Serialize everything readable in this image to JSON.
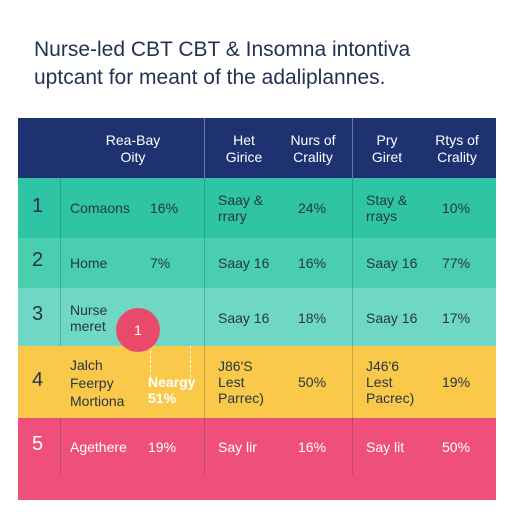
{
  "title": {
    "line1": "Nurse-led CBT CBT & Insomna intontiva",
    "line2": "uptcant for meant of the adaliplannes."
  },
  "colors": {
    "header": "#1e3170",
    "teal_dark": "#2fc4a3",
    "teal_mid": "#49cfb0",
    "teal_light": "#6fd8c4",
    "amber": "#fbc94a",
    "pink": "#ef4f7b",
    "badge": "#e94a6c"
  },
  "header": {
    "col1": "Rea-Bay\nOity",
    "col2a": "Het\nGirice",
    "col2b": "Nurs of\nCrality",
    "col3a": "Pry\nGiret",
    "col3b": "Rtys of\nCrality"
  },
  "rows": [
    {
      "num": "1",
      "label": "Comaons",
      "p1": "16%",
      "c2a": "Saay &\nrrary",
      "c2b": "24%",
      "c3a": "Stay &\nrrays",
      "c3b": "10%"
    },
    {
      "num": "2",
      "label": "Home",
      "p1": "7%",
      "c2a": "Saay 16",
      "c2b": "16%",
      "c3a": "Saay 16",
      "c3b": "77%"
    },
    {
      "num": "3",
      "label": "Nurse\nmeret",
      "p1": "",
      "c2a": "Saay 16",
      "c2b": "18%",
      "c3a": "Saay 16",
      "c3b": "17%"
    },
    {
      "num": "4",
      "label": "Jalch\nFeerpy\nMortiona",
      "p1": "Neargy\n51%",
      "c2a": "J86'S\nLest\nParrec)",
      "c2b": "50%",
      "c3a": "J46'6\nLest\nPacrec)",
      "c3b": "19%"
    },
    {
      "num": "5",
      "label": "Agethere",
      "p1": "19%",
      "c2a": "Say lir",
      "c2b": "16%",
      "c3a": "Say lit",
      "c3b": "50%"
    }
  ],
  "badge": {
    "label": "1"
  }
}
